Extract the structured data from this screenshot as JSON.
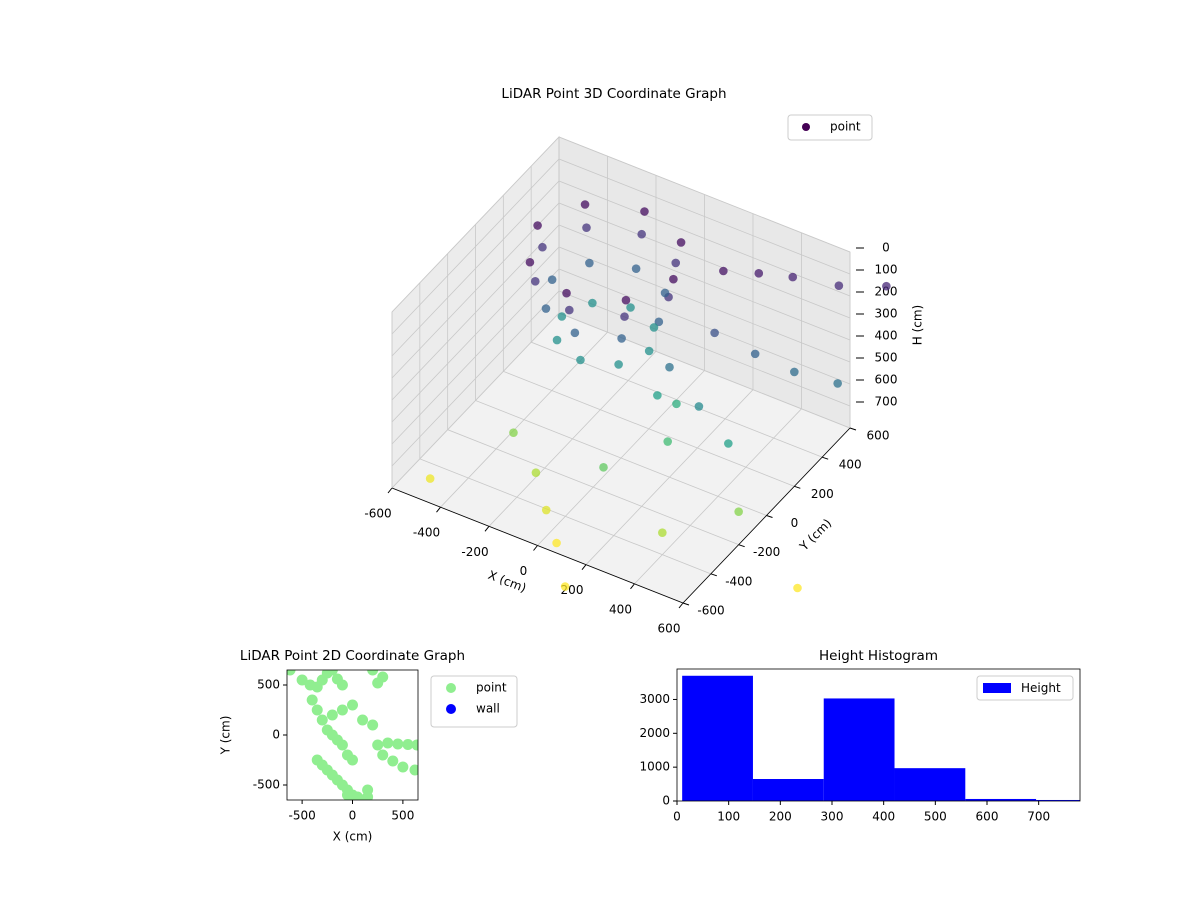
{
  "chart_data": [
    {
      "type": "scatter3d",
      "title": "LiDAR Point 3D Coordinate Graph",
      "xlabel": "X (cm)",
      "ylabel": "Y (cm)",
      "zlabel": "H (cm)",
      "xlim": [
        -600,
        600
      ],
      "ylim": [
        -600,
        600
      ],
      "zlim": [
        0,
        800
      ],
      "zinverted": true,
      "xticks": [
        -600,
        -400,
        -200,
        0,
        200,
        400,
        600
      ],
      "yticks": [
        -600,
        -400,
        -200,
        0,
        200,
        400,
        600
      ],
      "zticks": [
        0,
        100,
        200,
        300,
        400,
        500,
        600,
        700
      ],
      "grid": true,
      "colormap": "viridis",
      "legend": "upper right",
      "series": [
        {
          "name": "point",
          "x": [
            130,
            48,
            -150,
            -348,
            -430,
            -348,
            -150,
            48,
            110,
            34,
            -150,
            -334,
            -410,
            -334,
            -150,
            34,
            70,
            6,
            -150,
            -306,
            -370,
            -306,
            -150,
            6,
            30,
            -23,
            -150,
            -277,
            -330,
            -277,
            -150,
            -23,
            250,
            350,
            450,
            600,
            750,
            300,
            450,
            600,
            750,
            200,
            350,
            500,
            -300,
            -150,
            -50,
            50,
            100,
            150,
            200,
            250,
            -500,
            400,
            600,
            900,
            200
          ],
          "y": [
            150,
            348,
            430,
            348,
            150,
            -48,
            -130,
            -48,
            150,
            334,
            410,
            334,
            150,
            -34,
            -110,
            -34,
            150,
            306,
            370,
            306,
            150,
            -6,
            -70,
            -6,
            150,
            277,
            330,
            277,
            150,
            23,
            -30,
            23,
            300,
            380,
            450,
            520,
            600,
            150,
            180,
            200,
            250,
            0,
            -50,
            -100,
            -250,
            -350,
            -450,
            -550,
            -300,
            0,
            50,
            -100,
            -500,
            -400,
            -200,
            -300,
            -750
          ],
          "z": [
            30,
            30,
            30,
            30,
            30,
            30,
            30,
            30,
            120,
            120,
            120,
            120,
            120,
            120,
            120,
            120,
            250,
            250,
            250,
            250,
            250,
            250,
            250,
            250,
            400,
            400,
            400,
            400,
            400,
            400,
            400,
            400,
            40,
            60,
            80,
            100,
            90,
            200,
            250,
            280,
            300,
            300,
            380,
            450,
            650,
            700,
            760,
            800,
            600,
            450,
            500,
            550,
            780,
            700,
            650,
            800,
            800
          ]
        }
      ]
    },
    {
      "type": "scatter",
      "title": "LiDAR Point 2D Coordinate Graph",
      "xlabel": "X (cm)",
      "ylabel": "Y (cm)",
      "xlim": [
        -650,
        650
      ],
      "ylim": [
        -650,
        650
      ],
      "xticks": [
        -500,
        0,
        500
      ],
      "yticks": [
        -500,
        0,
        500
      ],
      "legend": "outside right",
      "series": [
        {
          "name": "point",
          "color": "#90ee90",
          "x": [
            -620,
            -500,
            -420,
            -350,
            -300,
            -250,
            -200,
            -150,
            -100,
            300,
            250,
            200,
            -400,
            -350,
            -300,
            -250,
            -200,
            -150,
            -100,
            -50,
            0,
            -350,
            -300,
            -250,
            -200,
            -150,
            -100,
            -50,
            0,
            50,
            100,
            150,
            250,
            350,
            450,
            550,
            640,
            300,
            400,
            500,
            620,
            -200,
            -100,
            0,
            100,
            200,
            -50,
            150
          ],
          "y": [
            650,
            550,
            500,
            480,
            550,
            620,
            650,
            560,
            500,
            580,
            520,
            650,
            350,
            250,
            150,
            50,
            0,
            -50,
            -100,
            -200,
            -250,
            -250,
            -300,
            -350,
            -400,
            -450,
            -500,
            -550,
            -600,
            -620,
            -650,
            -550,
            -100,
            -80,
            -90,
            -95,
            -100,
            -200,
            -260,
            -320,
            -350,
            200,
            250,
            300,
            150,
            100,
            -600,
            -620
          ]
        },
        {
          "name": "wall",
          "color": "#0000ff",
          "x": [],
          "y": []
        }
      ]
    },
    {
      "type": "histogram",
      "title": "Height Histogram",
      "label": "Height",
      "bins": [
        10,
        147,
        284,
        421,
        558,
        695,
        832
      ],
      "values": [
        3700,
        650,
        3030,
        970,
        60,
        30
      ],
      "color": "#0000ff",
      "xlim": [
        0,
        780
      ],
      "ylim": [
        0,
        3900
      ],
      "xticks": [
        0,
        100,
        200,
        300,
        400,
        500,
        600,
        700
      ],
      "yticks": [
        0,
        1000,
        2000,
        3000
      ],
      "legend": "upper right"
    }
  ]
}
